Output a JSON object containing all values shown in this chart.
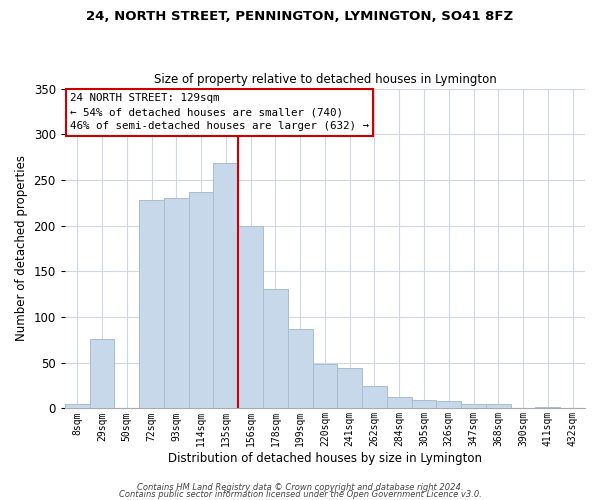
{
  "title": "24, NORTH STREET, PENNINGTON, LYMINGTON, SO41 8FZ",
  "subtitle": "Size of property relative to detached houses in Lymington",
  "xlabel": "Distribution of detached houses by size in Lymington",
  "ylabel": "Number of detached properties",
  "bar_color": "#c8d8eb",
  "bar_edge_color": "#a8bdd0",
  "categories": [
    "8sqm",
    "29sqm",
    "50sqm",
    "72sqm",
    "93sqm",
    "114sqm",
    "135sqm",
    "156sqm",
    "178sqm",
    "199sqm",
    "220sqm",
    "241sqm",
    "262sqm",
    "284sqm",
    "305sqm",
    "326sqm",
    "347sqm",
    "368sqm",
    "390sqm",
    "411sqm",
    "432sqm"
  ],
  "values": [
    5,
    76,
    0,
    228,
    230,
    237,
    268,
    200,
    131,
    87,
    49,
    44,
    24,
    12,
    9,
    8,
    5,
    5,
    0,
    2,
    0
  ],
  "ylim": [
    0,
    350
  ],
  "yticks": [
    0,
    50,
    100,
    150,
    200,
    250,
    300,
    350
  ],
  "vline_x_index": 6,
  "vline_color": "#cc0000",
  "annotation_title": "24 NORTH STREET: 129sqm",
  "annotation_line1": "← 54% of detached houses are smaller (740)",
  "annotation_line2": "46% of semi-detached houses are larger (632) →",
  "footnote1": "Contains HM Land Registry data © Crown copyright and database right 2024.",
  "footnote2": "Contains public sector information licensed under the Open Government Licence v3.0.",
  "background_color": "#ffffff",
  "grid_color": "#d0d8e4"
}
